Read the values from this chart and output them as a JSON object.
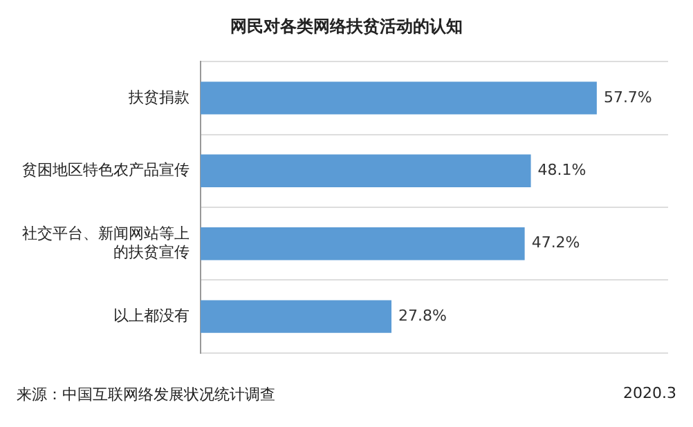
{
  "chart_data": {
    "type": "bar",
    "orientation": "horizontal",
    "title": "网民对各类网络扶贫活动的认知",
    "categories": [
      "扶贫捐款",
      "贫困地区特色农产品宣传",
      "社交平台、新闻网站等上的扶贫宣传",
      "以上都没有"
    ],
    "values": [
      57.7,
      48.1,
      47.2,
      27.8
    ],
    "value_labels": [
      "57.7%",
      "48.1%",
      "47.2%",
      "27.8%"
    ],
    "color": "#5b9bd5",
    "grid": "y",
    "legend": false,
    "annotations": [
      "来源：中国互联网络发展状况统计调查",
      "2020.3"
    ]
  }
}
